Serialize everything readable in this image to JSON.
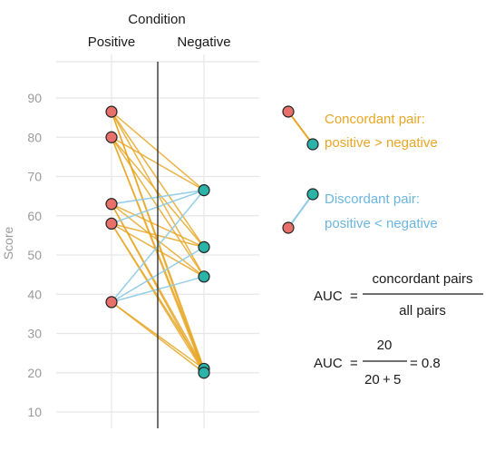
{
  "chart_data": {
    "type": "parallel-coordinates",
    "header": "Condition",
    "conditions": [
      "Positive",
      "Negative"
    ],
    "ylabel": "Score",
    "yticks": [
      10,
      20,
      30,
      40,
      50,
      60,
      70,
      80,
      90
    ],
    "ylim": [
      8,
      100
    ],
    "positive_scores": [
      86.5,
      80,
      63,
      58,
      38
    ],
    "negative_scores": [
      66.5,
      52,
      44.5,
      21,
      20
    ],
    "grid": true
  },
  "legend": {
    "concordant": {
      "line1": "Concordant pair:",
      "line2": "positive > negative"
    },
    "discordant": {
      "line1": "Discordant pair:",
      "line2": "positive < negative"
    }
  },
  "formula1": {
    "lhs": "AUC",
    "eq": "=",
    "numerator": "concordant pairs",
    "denominator": "all pairs"
  },
  "formula2": {
    "lhs": "AUC",
    "eq": "=",
    "numerator": "20",
    "den_a": "20",
    "den_plus": "+",
    "den_b": "5",
    "result": "= 0.8"
  },
  "colors": {
    "concordant": "#e8a624",
    "discordant": "#8fcbe6",
    "positive_point": "#e8706a",
    "negative_point": "#2bb3a8",
    "grid": "#e6e6e6",
    "tick": "#9a9a9a"
  }
}
